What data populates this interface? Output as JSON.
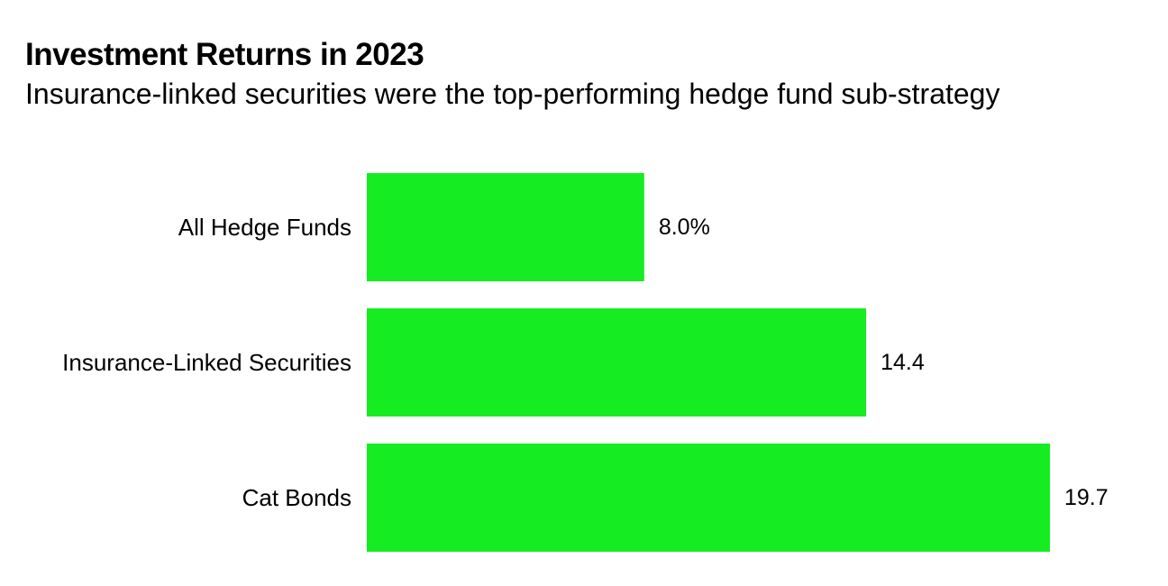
{
  "header": {
    "title": "Investment Returns in 2023",
    "subtitle": "Insurance-linked securities were the top-performing hedge fund sub-strategy"
  },
  "colors": {
    "bar": "#16ec22",
    "text": "#000000",
    "background": "#ffffff"
  },
  "chart_data": {
    "type": "bar",
    "orientation": "horizontal",
    "categories": [
      "All Hedge Funds",
      "Insurance-Linked Securities",
      "Cat Bonds"
    ],
    "values": [
      8.0,
      14.4,
      19.7
    ],
    "value_labels": [
      "8.0%",
      "14.4",
      "19.7"
    ],
    "title": "Investment Returns in 2023",
    "subtitle": "Insurance-linked securities were the top-performing hedge fund sub-strategy",
    "xlabel": "",
    "ylabel": "",
    "xlim": [
      0,
      19.7
    ],
    "grid": false,
    "legend": "none"
  }
}
